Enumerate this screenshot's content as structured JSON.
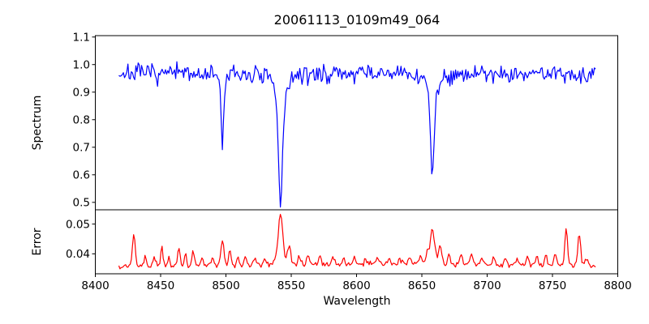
{
  "chart_data": {
    "type": "line",
    "title": "20061113_0109m49_064",
    "xlabel": "Wavelength",
    "x_range": [
      8400,
      8800
    ],
    "x_ticks": [
      8400,
      8450,
      8500,
      8550,
      8600,
      8650,
      8700,
      8750,
      8800
    ],
    "x_tick_labels": [
      "8400",
      "8450",
      "8500",
      "8550",
      "8600",
      "8650",
      "8700",
      "8750",
      "8800"
    ],
    "grid": false,
    "legend": "none",
    "panels": [
      {
        "name": "spectrum",
        "ylabel": "Spectrum",
        "color": "#0000ff",
        "ylim": [
          0.473,
          1.105
        ],
        "y_ticks": [
          0.5,
          0.6,
          0.7,
          0.8,
          0.9,
          1.0,
          1.1
        ],
        "y_tick_labels": [
          "0.5",
          "0.6",
          "0.7",
          "0.8",
          "0.9",
          "1.0",
          "1.1"
        ],
        "series": {
          "x_start": 8418,
          "x_end": 8783,
          "n_points": 420,
          "seed": 7,
          "baseline": 0.968,
          "noise_sigma": 0.0165,
          "features": [
            {
              "center": 8497.3,
              "amp": -0.27,
              "sigma": 0.9,
              "lorentz_frac": 0.25,
              "gamma": 1.8
            },
            {
              "center": 8541.8,
              "amp": -0.47,
              "sigma": 1.4,
              "lorentz_frac": 0.42,
              "gamma": 3.2
            },
            {
              "center": 8658.0,
              "amp": -0.39,
              "sigma": 1.3,
              "lorentz_frac": 0.35,
              "gamma": 2.8
            }
          ]
        }
      },
      {
        "name": "error",
        "ylabel": "Error",
        "color": "#ff0000",
        "ylim": [
          0.0333,
          0.0548
        ],
        "y_ticks": [
          0.04,
          0.05
        ],
        "y_tick_labels": [
          "0.04",
          "0.05"
        ],
        "series": {
          "x_start": 8418,
          "x_end": 8783,
          "n_points": 420,
          "seed": 99,
          "baseline": 0.0357,
          "noise_sigma": 0.00045,
          "baseline_bump": {
            "center": 8630,
            "height": 0.0009,
            "width": 140
          },
          "features": [
            {
              "center": 8429.5,
              "amp": 0.0105,
              "sigma": 1.1
            },
            {
              "center": 8438,
              "amp": 0.003,
              "sigma": 0.9
            },
            {
              "center": 8445,
              "amp": 0.0028,
              "sigma": 0.9
            },
            {
              "center": 8451,
              "amp": 0.0058,
              "sigma": 1.0
            },
            {
              "center": 8456,
              "amp": 0.003,
              "sigma": 0.8
            },
            {
              "center": 8464,
              "amp": 0.0055,
              "sigma": 1.0
            },
            {
              "center": 8469,
              "amp": 0.0042,
              "sigma": 0.9
            },
            {
              "center": 8475,
              "amp": 0.0048,
              "sigma": 1.0
            },
            {
              "center": 8482,
              "amp": 0.0025,
              "sigma": 0.9
            },
            {
              "center": 8490,
              "amp": 0.0028,
              "sigma": 0.9
            },
            {
              "center": 8497.3,
              "amp": 0.008,
              "sigma": 1.2
            },
            {
              "center": 8503,
              "amp": 0.0045,
              "sigma": 1.0
            },
            {
              "center": 8509,
              "amp": 0.0032,
              "sigma": 0.9
            },
            {
              "center": 8515,
              "amp": 0.0035,
              "sigma": 0.9
            },
            {
              "center": 8522,
              "amp": 0.002,
              "sigma": 0.9
            },
            {
              "center": 8530,
              "amp": 0.0022,
              "sigma": 0.9
            },
            {
              "center": 8541.8,
              "amp": 0.0148,
              "sigma": 1.5
            },
            {
              "center": 8542,
              "amp": 0.0028,
              "sigma": 4.5
            },
            {
              "center": 8548.5,
              "amp": 0.006,
              "sigma": 1.2
            },
            {
              "center": 8556,
              "amp": 0.0028,
              "sigma": 0.9
            },
            {
              "center": 8563,
              "amp": 0.003,
              "sigma": 0.9
            },
            {
              "center": 8572,
              "amp": 0.0022,
              "sigma": 0.9
            },
            {
              "center": 8582,
              "amp": 0.0028,
              "sigma": 0.9
            },
            {
              "center": 8590,
              "amp": 0.002,
              "sigma": 0.9
            },
            {
              "center": 8598,
              "amp": 0.0022,
              "sigma": 0.9
            },
            {
              "center": 8607,
              "amp": 0.002,
              "sigma": 0.9
            },
            {
              "center": 8616,
              "amp": 0.0022,
              "sigma": 0.9
            },
            {
              "center": 8625,
              "amp": 0.002,
              "sigma": 0.9
            },
            {
              "center": 8633,
              "amp": 0.0022,
              "sigma": 0.9
            },
            {
              "center": 8641,
              "amp": 0.0025,
              "sigma": 0.9
            },
            {
              "center": 8649,
              "amp": 0.0032,
              "sigma": 1.0
            },
            {
              "center": 8654,
              "amp": 0.004,
              "sigma": 1.0
            },
            {
              "center": 8658,
              "amp": 0.0115,
              "sigma": 1.7
            },
            {
              "center": 8664,
              "amp": 0.0062,
              "sigma": 1.4
            },
            {
              "center": 8671,
              "amp": 0.003,
              "sigma": 1.0
            },
            {
              "center": 8680,
              "amp": 0.0032,
              "sigma": 1.0
            },
            {
              "center": 8688,
              "amp": 0.0035,
              "sigma": 1.0
            },
            {
              "center": 8696,
              "amp": 0.0025,
              "sigma": 0.9
            },
            {
              "center": 8705,
              "amp": 0.002,
              "sigma": 0.9
            },
            {
              "center": 8714,
              "amp": 0.0022,
              "sigma": 0.9
            },
            {
              "center": 8723,
              "amp": 0.0025,
              "sigma": 0.9
            },
            {
              "center": 8731,
              "amp": 0.0028,
              "sigma": 0.9
            },
            {
              "center": 8738,
              "amp": 0.003,
              "sigma": 0.9
            },
            {
              "center": 8745,
              "amp": 0.0035,
              "sigma": 1.0
            },
            {
              "center": 8752,
              "amp": 0.004,
              "sigma": 1.0
            },
            {
              "center": 8760.5,
              "amp": 0.0125,
              "sigma": 1.0
            },
            {
              "center": 8770.5,
              "amp": 0.0105,
              "sigma": 1.1
            },
            {
              "center": 8776,
              "amp": 0.0025,
              "sigma": 0.9
            }
          ]
        }
      }
    ]
  }
}
